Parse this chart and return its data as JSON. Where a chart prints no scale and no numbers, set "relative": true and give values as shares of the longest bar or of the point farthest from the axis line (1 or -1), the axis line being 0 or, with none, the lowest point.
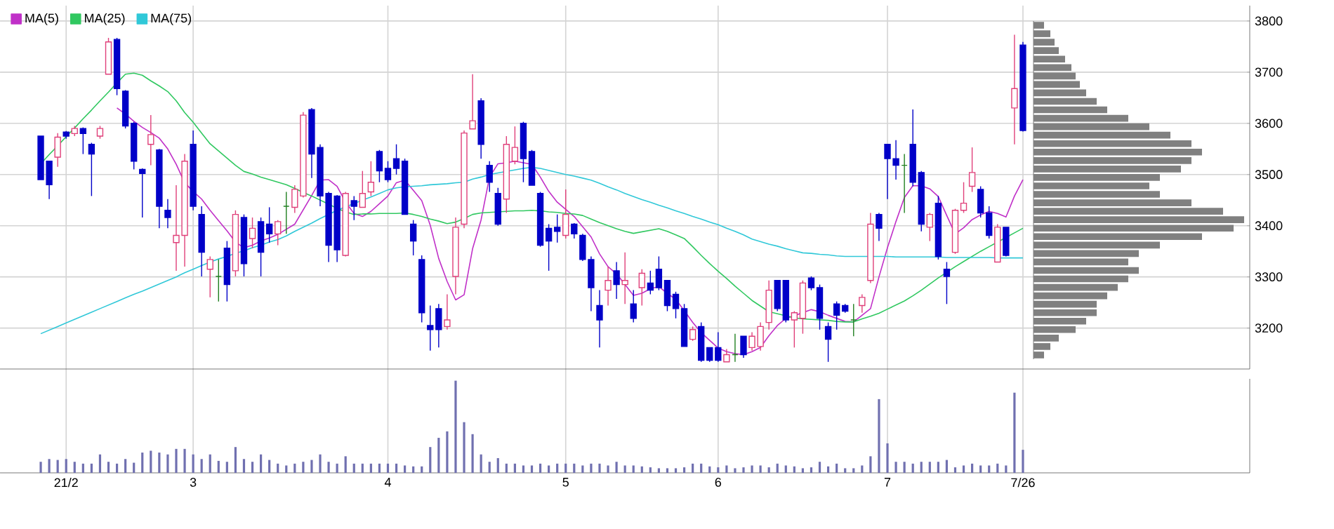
{
  "chart_data": [
    {
      "type": "candlestick",
      "categories": [
        null,
        null,
        null,
        null,
        null,
        null,
        null,
        null,
        null,
        null,
        null,
        null,
        null,
        null,
        null,
        null,
        null,
        null,
        null,
        null,
        null,
        null,
        null,
        null,
        null,
        null,
        null,
        null,
        null,
        null,
        null,
        null,
        null,
        null,
        null,
        null,
        null,
        null,
        null,
        null,
        null,
        null,
        null,
        null,
        null,
        null,
        null,
        null,
        null,
        null,
        null,
        null,
        null,
        null,
        null,
        null,
        null,
        null,
        null,
        null,
        null,
        null,
        null,
        null,
        null,
        null,
        null,
        null,
        null,
        null,
        null,
        null,
        null,
        null,
        null,
        null,
        null,
        null,
        null,
        null,
        null,
        null,
        null,
        null,
        null,
        null,
        null,
        null,
        null,
        null,
        null,
        null,
        null,
        null,
        null,
        null,
        null,
        null,
        null,
        null,
        null,
        null,
        null,
        null,
        null,
        null,
        null,
        null,
        null,
        null,
        null,
        null,
        null,
        null,
        null,
        null,
        null
      ],
      "ohlc": [
        [
          3575,
          3575,
          3490,
          3490
        ],
        [
          3526,
          3526,
          3452,
          3480
        ],
        [
          3534,
          3581,
          3515,
          3573
        ],
        [
          3583,
          3585,
          3570,
          3575
        ],
        [
          3580,
          3595,
          3575,
          3590
        ],
        [
          3590,
          3592,
          3540,
          3580
        ],
        [
          3559,
          3562,
          3458,
          3540
        ],
        [
          3575,
          3595,
          3570,
          3590
        ],
        [
          3696,
          3767,
          3696,
          3759
        ],
        [
          3764,
          3767,
          3655,
          3668
        ],
        [
          3663,
          3665,
          3590,
          3595
        ],
        [
          3600,
          3603,
          3510,
          3526
        ],
        [
          3510,
          3512,
          3416,
          3502
        ],
        [
          3559,
          3616,
          3518,
          3578
        ],
        [
          3548,
          3550,
          3395,
          3438
        ],
        [
          3430,
          3452,
          3395,
          3416
        ],
        [
          3367,
          3479,
          3312,
          3381
        ],
        [
          3381,
          3540,
          3320,
          3526
        ],
        [
          3559,
          3586,
          3430,
          3438
        ],
        [
          3422,
          3438,
          3301,
          3348
        ],
        [
          3315,
          3340,
          3260,
          3334
        ],
        [
          3301,
          3334,
          3252,
          3301
        ],
        [
          3356,
          3370,
          3252,
          3285
        ],
        [
          3312,
          3430,
          3301,
          3422
        ],
        [
          3416,
          3422,
          3301,
          3326
        ],
        [
          3375,
          3416,
          3356,
          3395
        ],
        [
          3408,
          3416,
          3301,
          3348
        ],
        [
          3403,
          3436,
          3367,
          3384
        ],
        [
          3384,
          3411,
          3362,
          3408
        ],
        [
          3438,
          3466,
          3384,
          3438
        ],
        [
          3436,
          3479,
          3425,
          3471
        ],
        [
          3458,
          3622,
          3455,
          3616
        ],
        [
          3627,
          3630,
          3493,
          3540
        ],
        [
          3553,
          3559,
          3438,
          3458
        ],
        [
          3463,
          3466,
          3329,
          3362
        ],
        [
          3458,
          3460,
          3329,
          3353
        ],
        [
          3342,
          3466,
          3340,
          3463
        ],
        [
          3449,
          3458,
          3411,
          3438
        ],
        [
          3436,
          3507,
          3436,
          3463
        ],
        [
          3466,
          3526,
          3458,
          3485
        ],
        [
          3545,
          3548,
          3485,
          3507
        ],
        [
          3512,
          3526,
          3485,
          3490
        ],
        [
          3531,
          3559,
          3500,
          3512
        ],
        [
          3526,
          3531,
          3422,
          3422
        ],
        [
          3403,
          3411,
          3342,
          3370
        ],
        [
          3334,
          3342,
          3211,
          3230
        ],
        [
          3205,
          3244,
          3156,
          3197
        ],
        [
          3238,
          3247,
          3162,
          3197
        ],
        [
          3203,
          3266,
          3197,
          3216
        ],
        [
          3301,
          3416,
          3266,
          3397
        ],
        [
          3403,
          3586,
          3395,
          3581
        ],
        [
          3589,
          3696,
          3589,
          3605
        ],
        [
          3644,
          3649,
          3531,
          3559
        ],
        [
          3518,
          3526,
          3466,
          3485
        ],
        [
          3463,
          3474,
          3400,
          3403
        ],
        [
          3452,
          3575,
          3425,
          3559
        ],
        [
          3526,
          3594,
          3520,
          3553
        ],
        [
          3600,
          3603,
          3485,
          3531
        ],
        [
          3545,
          3548,
          3479,
          3479
        ],
        [
          3463,
          3466,
          3359,
          3362
        ],
        [
          3395,
          3403,
          3312,
          3370
        ],
        [
          3397,
          3422,
          3367,
          3389
        ],
        [
          3381,
          3471,
          3375,
          3422
        ],
        [
          3403,
          3405,
          3375,
          3384
        ],
        [
          3381,
          3384,
          3331,
          3334
        ],
        [
          3334,
          3340,
          3233,
          3279
        ],
        [
          3244,
          3274,
          3162,
          3216
        ],
        [
          3274,
          3320,
          3244,
          3293
        ],
        [
          3312,
          3329,
          3257,
          3285
        ],
        [
          3285,
          3348,
          3247,
          3293
        ],
        [
          3247,
          3274,
          3211,
          3219
        ],
        [
          3279,
          3315,
          3244,
          3307
        ],
        [
          3288,
          3312,
          3266,
          3274
        ],
        [
          3315,
          3340,
          3274,
          3279
        ],
        [
          3293,
          3293,
          3233,
          3244
        ],
        [
          3266,
          3271,
          3219,
          3238
        ],
        [
          3238,
          3247,
          3164,
          3164
        ],
        [
          3178,
          3203,
          3175,
          3197
        ],
        [
          3203,
          3211,
          3134,
          3137
        ],
        [
          3162,
          3162,
          3134,
          3137
        ],
        [
          3162,
          3192,
          3134,
          3137
        ],
        [
          3134,
          3159,
          3134,
          3148
        ],
        [
          3148,
          3189,
          3134,
          3148
        ],
        [
          3184,
          3184,
          3142,
          3148
        ],
        [
          3162,
          3192,
          3156,
          3184
        ],
        [
          3164,
          3211,
          3156,
          3203
        ],
        [
          3211,
          3293,
          3197,
          3274
        ],
        [
          3293,
          3293,
          3233,
          3238
        ],
        [
          3293,
          3293,
          3211,
          3216
        ],
        [
          3216,
          3233,
          3162,
          3230
        ],
        [
          3219,
          3293,
          3189,
          3288
        ],
        [
          3298,
          3301,
          3274,
          3279
        ],
        [
          3279,
          3285,
          3197,
          3219
        ],
        [
          3203,
          3211,
          3134,
          3178
        ],
        [
          3247,
          3252,
          3197,
          3225
        ],
        [
          3244,
          3247,
          3230,
          3233
        ],
        [
          3216,
          3247,
          3184,
          3216
        ],
        [
          3244,
          3266,
          3230,
          3260
        ],
        [
          3293,
          3425,
          3288,
          3403
        ],
        [
          3422,
          3425,
          3370,
          3395
        ],
        [
          3559,
          3559,
          3452,
          3531
        ],
        [
          3531,
          3567,
          3490,
          3518
        ],
        [
          3518,
          3540,
          3425,
          3518
        ],
        [
          3559,
          3627,
          3477,
          3485
        ],
        [
          3504,
          3507,
          3389,
          3403
        ],
        [
          3397,
          3425,
          3370,
          3422
        ],
        [
          3444,
          3458,
          3334,
          3340
        ],
        [
          3315,
          3329,
          3247,
          3301
        ],
        [
          3348,
          3433,
          3345,
          3430
        ],
        [
          3430,
          3485,
          3425,
          3444
        ],
        [
          3477,
          3553,
          3466,
          3504
        ],
        [
          3471,
          3477,
          3416,
          3425
        ],
        [
          3425,
          3438,
          3375,
          3381
        ],
        [
          3329,
          3403,
          3329,
          3397
        ],
        [
          3397,
          3397,
          3340,
          3342
        ],
        [
          3630,
          3773,
          3559,
          3668
        ],
        [
          3753,
          3759,
          3584,
          3586
        ]
      ],
      "colors": [
        "#0000c8",
        "#0000c8",
        "#e0407a",
        "#0000c8",
        "#e0407a",
        "#0000c8",
        "#0000c8",
        "#e0407a",
        "#e0407a",
        "#0000c8",
        "#0000c8",
        "#0000c8",
        "#0000c8",
        "#e0407a",
        "#0000c8",
        "#0000c8",
        "#e0407a",
        "#e0407a",
        "#0000c8",
        "#0000c8",
        "#e0407a",
        "#208020",
        "#0000c8",
        "#e0407a",
        "#0000c8",
        "#e0407a",
        "#0000c8",
        "#0000c8",
        "#e0407a",
        "#208020",
        "#e0407a",
        "#e0407a",
        "#0000c8",
        "#0000c8",
        "#0000c8",
        "#0000c8",
        "#e0407a",
        "#0000c8",
        "#e0407a",
        "#e0407a",
        "#0000c8",
        "#0000c8",
        "#0000c8",
        "#0000c8",
        "#0000c8",
        "#0000c8",
        "#0000c8",
        "#0000c8",
        "#e0407a",
        "#e0407a",
        "#e0407a",
        "#e0407a",
        "#0000c8",
        "#0000c8",
        "#0000c8",
        "#e0407a",
        "#e0407a",
        "#0000c8",
        "#0000c8",
        "#0000c8",
        "#0000c8",
        "#0000c8",
        "#e0407a",
        "#0000c8",
        "#0000c8",
        "#0000c8",
        "#0000c8",
        "#e0407a",
        "#0000c8",
        "#e0407a",
        "#0000c8",
        "#e0407a",
        "#0000c8",
        "#0000c8",
        "#0000c8",
        "#0000c8",
        "#0000c8",
        "#e0407a",
        "#0000c8",
        "#0000c8",
        "#0000c8",
        "#e0407a",
        "#208020",
        "#0000c8",
        "#e0407a",
        "#e0407a",
        "#e0407a",
        "#0000c8",
        "#0000c8",
        "#e0407a",
        "#e0407a",
        "#0000c8",
        "#0000c8",
        "#0000c8",
        "#0000c8",
        "#0000c8",
        "#208020",
        "#e0407a",
        "#e0407a",
        "#0000c8",
        "#0000c8",
        "#0000c8",
        "#208020",
        "#0000c8",
        "#0000c8",
        "#e0407a",
        "#0000c8",
        "#0000c8",
        "#e0407a",
        "#e0407a",
        "#e0407a",
        "#0000c8",
        "#0000c8",
        "#e0407a",
        "#0000c8",
        "#e0407a",
        "#0000c8"
      ],
      "series": [
        {
          "name": "MA(5)",
          "type": "line",
          "color": "#c030c8",
          "values": [
            null,
            null,
            null,
            null,
            null,
            null,
            null,
            null,
            null,
            3630,
            3618,
            3604,
            3592,
            3582,
            3571,
            3550,
            3520,
            3484,
            3467,
            3452,
            3430,
            3410,
            3390,
            3368,
            3357,
            3362,
            3370,
            3376,
            3383,
            3393,
            3403,
            3431,
            3459,
            3489,
            3490,
            3477,
            3446,
            3424,
            3418,
            3428,
            3443,
            3458,
            3484,
            3489,
            3469,
            3449,
            3401,
            3336,
            3291,
            3255,
            3265,
            3355,
            3411,
            3495,
            3521,
            3523,
            3526,
            3523,
            3520,
            3495,
            3467,
            3446,
            3432,
            3418,
            3398,
            3378,
            3345,
            3320,
            3306,
            3285,
            3264,
            3268,
            3277,
            3281,
            3268,
            3256,
            3234,
            3211,
            3191,
            3176,
            3161,
            3154,
            3150,
            3148,
            3154,
            3162,
            3185,
            3205,
            3219,
            3224,
            3230,
            3236,
            3232,
            3225,
            3219,
            3213,
            3212,
            3225,
            3238,
            3300,
            3357,
            3408,
            3455,
            3478,
            3478,
            3472,
            3457,
            3420,
            3384,
            3396,
            3412,
            3421,
            3428,
            3424,
            3417,
            3458,
            3490
          ]
        },
        {
          "name": "MA(25)",
          "type": "line",
          "color": "#30c860",
          "values": [
            3521,
            3539,
            3556,
            3574,
            3591,
            3609,
            3626,
            3644,
            3661,
            3679,
            3696,
            3698,
            3694,
            3683,
            3673,
            3662,
            3644,
            3621,
            3602,
            3581,
            3560,
            3546,
            3532,
            3518,
            3506,
            3501,
            3495,
            3490,
            3485,
            3480,
            3473,
            3465,
            3458,
            3450,
            3442,
            3434,
            3427,
            3422,
            3423,
            3423,
            3424,
            3424,
            3424,
            3425,
            3422,
            3418,
            3413,
            3409,
            3404,
            3407,
            3414,
            3422,
            3425,
            3426,
            3427,
            3428,
            3429,
            3429,
            3430,
            3429,
            3427,
            3426,
            3424,
            3423,
            3420,
            3413,
            3406,
            3400,
            3394,
            3389,
            3385,
            3388,
            3391,
            3394,
            3389,
            3382,
            3375,
            3359,
            3342,
            3326,
            3311,
            3297,
            3282,
            3268,
            3254,
            3243,
            3232,
            3228,
            3224,
            3220,
            3218,
            3217,
            3216,
            3215,
            3213,
            3212,
            3212,
            3218,
            3223,
            3229,
            3237,
            3245,
            3253,
            3263,
            3274,
            3286,
            3298,
            3309,
            3320,
            3330,
            3340,
            3350,
            3359,
            3368,
            3377,
            3386,
            3395
          ]
        },
        {
          "name": "MA(75)",
          "type": "line",
          "color": "#30c8d8",
          "values": [
            3189,
            3196,
            3203,
            3210,
            3217,
            3224,
            3231,
            3238,
            3245,
            3252,
            3259,
            3266,
            3272,
            3279,
            3286,
            3293,
            3300,
            3308,
            3315,
            3322,
            3329,
            3335,
            3340,
            3346,
            3351,
            3357,
            3362,
            3368,
            3373,
            3380,
            3389,
            3397,
            3405,
            3414,
            3422,
            3430,
            3437,
            3443,
            3450,
            3456,
            3463,
            3470,
            3474,
            3476,
            3477,
            3478,
            3480,
            3481,
            3482,
            3484,
            3485,
            3491,
            3495,
            3500,
            3503,
            3506,
            3509,
            3512,
            3514,
            3512,
            3508,
            3504,
            3500,
            3497,
            3493,
            3489,
            3483,
            3476,
            3470,
            3463,
            3457,
            3451,
            3446,
            3440,
            3435,
            3429,
            3424,
            3418,
            3413,
            3407,
            3402,
            3395,
            3389,
            3382,
            3374,
            3369,
            3364,
            3360,
            3355,
            3351,
            3347,
            3346,
            3344,
            3343,
            3341,
            3340,
            3340,
            3340,
            3340,
            3340,
            3340,
            3339,
            3339,
            3339,
            3339,
            3339,
            3339,
            3338,
            3338,
            3338,
            3338,
            3338,
            3338,
            3337,
            3337,
            3337,
            3337
          ]
        }
      ],
      "ylim": [
        3120,
        3830
      ],
      "yticks": [
        3200,
        3300,
        3400,
        3500,
        3600,
        3700,
        3800
      ],
      "grid": "y",
      "legend": "top left",
      "tick_labels": "y"
    },
    {
      "type": "bar",
      "relative": true,
      "color": "#7070b0",
      "categories": [
        null,
        null,
        null,
        "21/2",
        null,
        null,
        null,
        null,
        null,
        null,
        null,
        null,
        null,
        null,
        null,
        null,
        null,
        null,
        "3",
        null,
        null,
        null,
        null,
        null,
        null,
        null,
        null,
        null,
        null,
        null,
        null,
        null,
        null,
        null,
        null,
        null,
        null,
        null,
        null,
        null,
        null,
        "4",
        null,
        null,
        null,
        null,
        null,
        null,
        null,
        null,
        null,
        null,
        null,
        null,
        null,
        null,
        null,
        null,
        null,
        null,
        null,
        null,
        "5",
        null,
        null,
        null,
        null,
        null,
        null,
        null,
        null,
        null,
        null,
        null,
        null,
        null,
        null,
        null,
        null,
        null,
        "6",
        null,
        null,
        null,
        null,
        null,
        null,
        null,
        null,
        null,
        null,
        null,
        null,
        null,
        null,
        null,
        null,
        null,
        null,
        null,
        "7",
        null,
        null,
        null,
        null,
        null,
        null,
        null,
        null,
        null,
        null,
        null,
        null,
        null,
        null,
        null,
        "7/26"
      ],
      "values": [
        0.12,
        0.15,
        0.14,
        0.15,
        0.12,
        0.1,
        0.1,
        0.2,
        0.12,
        0.1,
        0.15,
        0.11,
        0.22,
        0.24,
        0.22,
        0.2,
        0.26,
        0.26,
        0.2,
        0.15,
        0.2,
        0.13,
        0.12,
        0.28,
        0.15,
        0.12,
        0.2,
        0.14,
        0.1,
        0.08,
        0.1,
        0.12,
        0.14,
        0.2,
        0.12,
        0.1,
        0.18,
        0.1,
        0.1,
        0.1,
        0.1,
        0.1,
        0.1,
        0.08,
        0.07,
        0.07,
        0.28,
        0.38,
        0.45,
        1,
        0.55,
        0.42,
        0.2,
        0.12,
        0.16,
        0.1,
        0.1,
        0.08,
        0.08,
        0.1,
        0.08,
        0.1,
        0.1,
        0.1,
        0.08,
        0.1,
        0.1,
        0.08,
        0.12,
        0.08,
        0.08,
        0.07,
        0.06,
        0.05,
        0.05,
        0.05,
        0.06,
        0.1,
        0.1,
        0.07,
        0.06,
        0.08,
        0.05,
        0.06,
        0.08,
        0.08,
        0.06,
        0.1,
        0.08,
        0.07,
        0.05,
        0.06,
        0.12,
        0.07,
        0.1,
        0.05,
        0.05,
        0.08,
        0.18,
        0.8,
        0.32,
        0.12,
        0.12,
        0.1,
        0.12,
        0.12,
        0.12,
        0.14,
        0.06,
        0.08,
        0.1,
        0.08,
        0.08,
        0.1,
        0.08,
        0.87,
        0.25
      ],
      "grid": "x",
      "tick_labels": "x"
    },
    {
      "type": "bar",
      "orientation": "horizontal",
      "relative": true,
      "color": "#808080",
      "categories": [
        null,
        null,
        null,
        null,
        null,
        null,
        null,
        null,
        null,
        null,
        null,
        null,
        null,
        null,
        null,
        null,
        null,
        null,
        null,
        null,
        null,
        null,
        null,
        null,
        null,
        null,
        null,
        null,
        null,
        null,
        null,
        null,
        null,
        null,
        null,
        null,
        null,
        null,
        null,
        null
      ],
      "values": [
        0.05,
        0.08,
        0.1,
        0.12,
        0.15,
        0.18,
        0.2,
        0.22,
        0.25,
        0.3,
        0.35,
        0.45,
        0.55,
        0.65,
        0.75,
        0.8,
        0.75,
        0.7,
        0.6,
        0.55,
        0.6,
        0.75,
        0.9,
        1,
        0.95,
        0.8,
        0.6,
        0.5,
        0.45,
        0.5,
        0.45,
        0.4,
        0.35,
        0.3,
        0.3,
        0.25,
        0.2,
        0.12,
        0.08,
        0.05
      ],
      "tick_labels": false
    }
  ]
}
